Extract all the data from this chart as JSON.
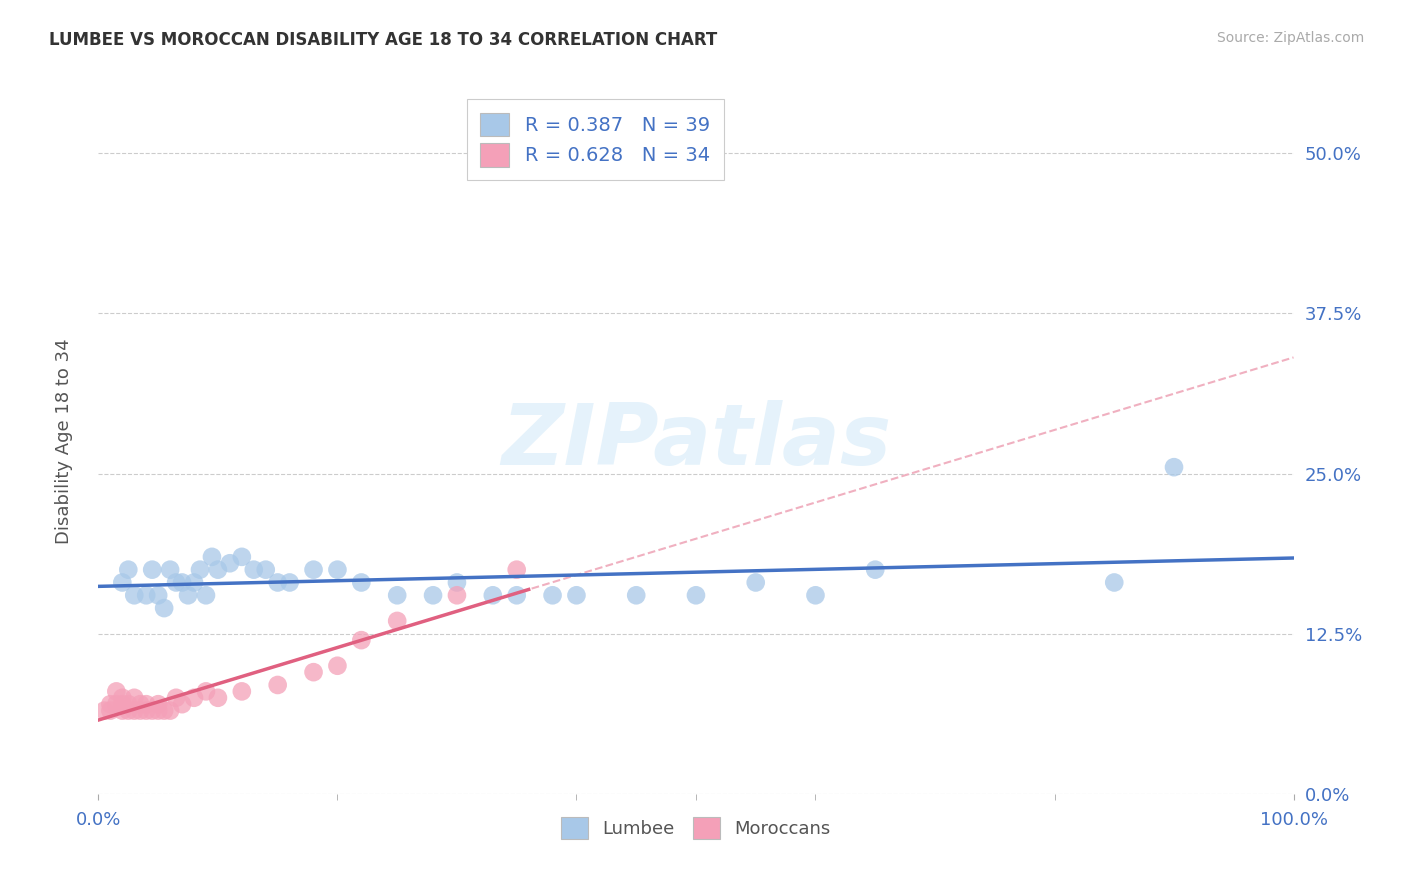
{
  "title": "LUMBEE VS MOROCCAN DISABILITY AGE 18 TO 34 CORRELATION CHART",
  "source_text": "Source: ZipAtlas.com",
  "ylabel": "Disability Age 18 to 34",
  "xlim": [
    0,
    1.0
  ],
  "ylim": [
    0,
    0.55
  ],
  "yticks": [
    0.0,
    0.125,
    0.25,
    0.375,
    0.5
  ],
  "ytick_labels": [
    "0.0%",
    "12.5%",
    "25.0%",
    "37.5%",
    "50.0%"
  ],
  "xticks": [
    0.0,
    1.0
  ],
  "xtick_labels": [
    "0.0%",
    "100.0%"
  ],
  "lumbee_R": 0.387,
  "lumbee_N": 39,
  "moroccan_R": 0.628,
  "moroccan_N": 34,
  "lumbee_color": "#a8c8e8",
  "moroccan_color": "#f4a0b8",
  "lumbee_line_color": "#4472c4",
  "moroccan_line_color": "#e06080",
  "moroccan_dashed_color": "#f0b0c0",
  "legend_text_color": "#4472c4",
  "watermark_color": "#d0e8f8",
  "background_color": "#ffffff",
  "lumbee_x": [
    0.02,
    0.025,
    0.03,
    0.04,
    0.045,
    0.05,
    0.055,
    0.06,
    0.065,
    0.07,
    0.075,
    0.08,
    0.085,
    0.09,
    0.095,
    0.1,
    0.11,
    0.12,
    0.13,
    0.14,
    0.15,
    0.16,
    0.18,
    0.2,
    0.22,
    0.25,
    0.28,
    0.3,
    0.33,
    0.35,
    0.38,
    0.4,
    0.45,
    0.5,
    0.55,
    0.6,
    0.65,
    0.85,
    0.9
  ],
  "lumbee_y": [
    0.165,
    0.175,
    0.155,
    0.155,
    0.175,
    0.155,
    0.145,
    0.175,
    0.165,
    0.165,
    0.155,
    0.165,
    0.175,
    0.155,
    0.185,
    0.175,
    0.18,
    0.185,
    0.175,
    0.175,
    0.165,
    0.165,
    0.175,
    0.175,
    0.165,
    0.155,
    0.155,
    0.165,
    0.155,
    0.155,
    0.155,
    0.155,
    0.155,
    0.155,
    0.165,
    0.155,
    0.175,
    0.165,
    0.255
  ],
  "moroccan_x": [
    0.005,
    0.01,
    0.01,
    0.015,
    0.015,
    0.02,
    0.02,
    0.02,
    0.025,
    0.025,
    0.03,
    0.03,
    0.035,
    0.035,
    0.04,
    0.04,
    0.045,
    0.05,
    0.05,
    0.055,
    0.06,
    0.065,
    0.07,
    0.08,
    0.09,
    0.1,
    0.12,
    0.15,
    0.18,
    0.2,
    0.22,
    0.25,
    0.3,
    0.35
  ],
  "moroccan_y": [
    0.065,
    0.07,
    0.065,
    0.07,
    0.08,
    0.065,
    0.07,
    0.075,
    0.07,
    0.065,
    0.065,
    0.075,
    0.07,
    0.065,
    0.065,
    0.07,
    0.065,
    0.07,
    0.065,
    0.065,
    0.065,
    0.075,
    0.07,
    0.075,
    0.08,
    0.075,
    0.08,
    0.085,
    0.095,
    0.1,
    0.12,
    0.135,
    0.155,
    0.175
  ]
}
